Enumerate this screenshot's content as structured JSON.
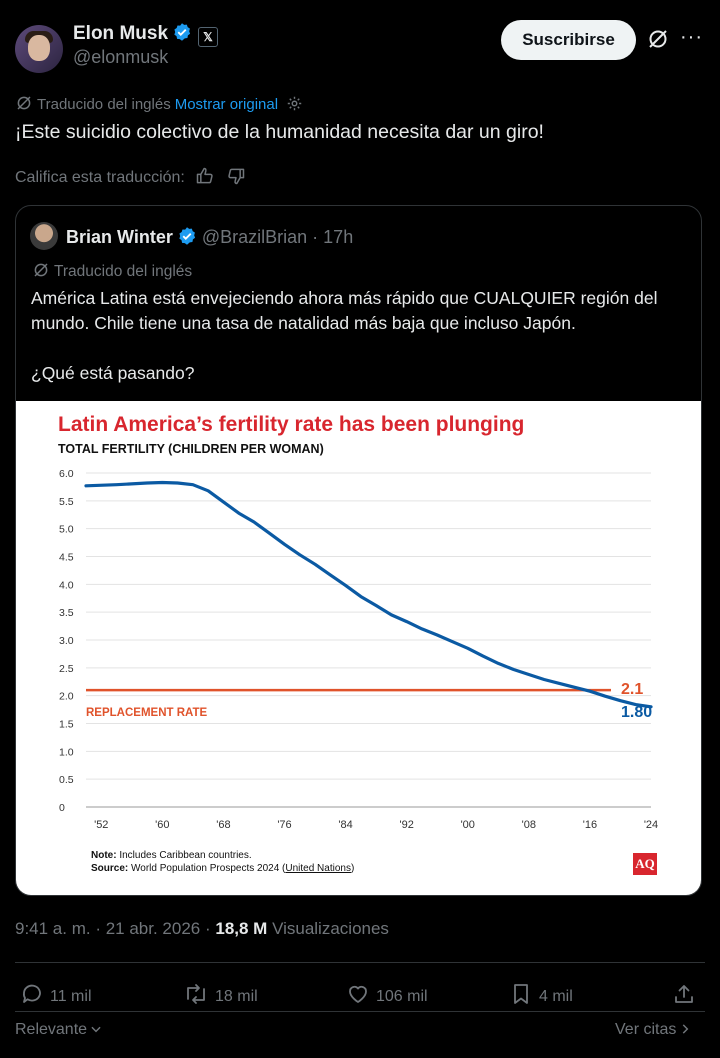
{
  "author": {
    "name": "Elon Musk",
    "handle": "@elonmusk",
    "x_badge": "𝕏"
  },
  "header": {
    "subscribe_label": "Suscribirse",
    "more_label": "···"
  },
  "translation": {
    "label": "Traducido del inglés",
    "show_original": "Mostrar original"
  },
  "tweet": {
    "text": "¡Este suicidio colectivo de la humanidad necesita dar un giro!"
  },
  "rate_translation": "Califica esta traducción:",
  "quote": {
    "name": "Brian Winter",
    "handle": "@BrazilBrian · 17h",
    "translated": "Traducido del inglés",
    "text": "América Latina está envejeciendo ahora más rápido que CUALQUIER región del mundo. Chile tiene una tasa de natalidad más baja que incluso Japón.\n\n¿Qué está pasando?"
  },
  "chart_data": {
    "type": "line",
    "title": "Latin America’s fertility rate has been plunging",
    "ylabel": "TOTAL FERTILITY (CHILDREN PER WOMAN)",
    "xlabel": "",
    "ylim": [
      0,
      6.0
    ],
    "xlim": [
      1950,
      2024
    ],
    "y_ticks": [
      "6.0",
      "5.5",
      "5.0",
      "4.5",
      "4.0",
      "3.5",
      "3.0",
      "2.5",
      "2.0",
      "1.5",
      "1.0",
      "0.5",
      "0"
    ],
    "y_tick_values": [
      6.0,
      5.5,
      5.0,
      4.5,
      4.0,
      3.5,
      3.0,
      2.5,
      2.0,
      1.5,
      1.0,
      0.5,
      0
    ],
    "x_ticks": [
      "'52",
      "'60",
      "'68",
      "'76",
      "'84",
      "'92",
      "'00",
      "'08",
      "'16",
      "'24"
    ],
    "x_tick_values": [
      1952,
      1960,
      1968,
      1976,
      1984,
      1992,
      2000,
      2008,
      2016,
      2024
    ],
    "series": [
      {
        "name": "Total fertility",
        "color": "#0b5aa3",
        "x": [
          1950,
          1954,
          1958,
          1960,
          1962,
          1964,
          1966,
          1968,
          1970,
          1972,
          1974,
          1976,
          1978,
          1980,
          1982,
          1984,
          1986,
          1988,
          1990,
          1992,
          1994,
          1996,
          1998,
          2000,
          2002,
          2004,
          2006,
          2008,
          2010,
          2012,
          2014,
          2016,
          2018,
          2020,
          2022,
          2024
        ],
        "y": [
          5.77,
          5.79,
          5.82,
          5.83,
          5.82,
          5.79,
          5.68,
          5.48,
          5.28,
          5.12,
          4.92,
          4.72,
          4.53,
          4.36,
          4.17,
          3.98,
          3.78,
          3.62,
          3.45,
          3.33,
          3.2,
          3.09,
          2.97,
          2.85,
          2.71,
          2.58,
          2.47,
          2.38,
          2.29,
          2.22,
          2.15,
          2.08,
          1.99,
          1.91,
          1.84,
          1.8
        ]
      }
    ],
    "reference_line": {
      "label": "REPLACEMENT RATE",
      "value": 2.1,
      "value_label": "2.1",
      "color": "#e0532b"
    },
    "end_label": "1.80",
    "note_label": "Note:",
    "note": "Includes Caribbean countries.",
    "source_label": "Source:",
    "source": "World Population Prospects 2024 (",
    "source_link": "United Nations",
    "source_end": ")",
    "logo": "AQ"
  },
  "footer": {
    "time": "9:41 a. m.",
    "date": " · 21 abr. 2026 · ",
    "views_count": "18,8 M",
    "views_label": " Visualizaciones"
  },
  "actions": {
    "replies": "11 mil",
    "reposts": "18 mil",
    "likes": "106 mil",
    "bookmarks": "4 mil"
  },
  "bottom": {
    "relevant": "Relevante",
    "quotes": "Ver citas"
  },
  "colors": {
    "accent": "#1d9bf0",
    "muted": "#71767b",
    "chart_red": "#d8262e"
  }
}
